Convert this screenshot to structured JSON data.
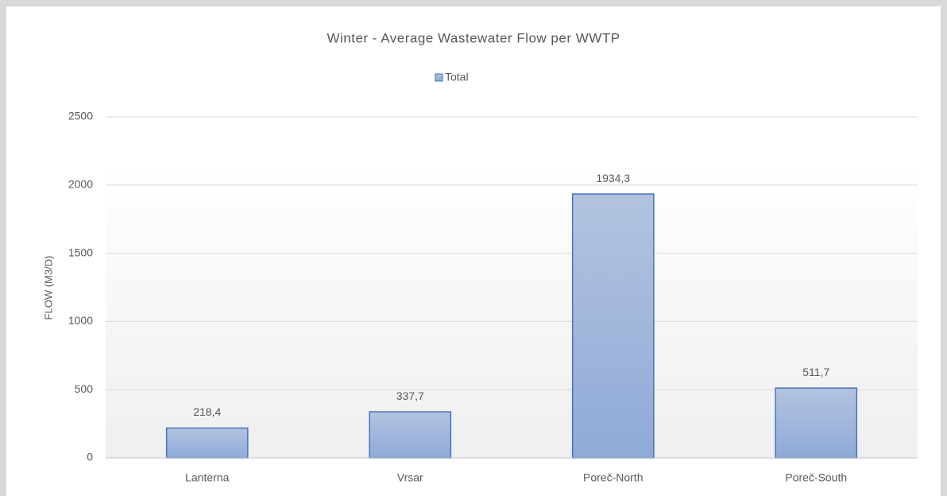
{
  "chart_data": {
    "type": "bar",
    "title": "Winter - Average Wastewater Flow per WWTP",
    "y_axis_label": "FLOW (M3/D)",
    "categories": [
      "Lanterna",
      "Vrsar",
      "Poreč-North",
      "Poreč-South"
    ],
    "series": [
      {
        "name": "Total",
        "color": "#4472c4",
        "values": [
          218.4,
          337.7,
          1934.3,
          511.7
        ],
        "value_labels": [
          "218,4",
          "337,7",
          "1934,3",
          "511,7"
        ]
      }
    ],
    "ylim": [
      0,
      2500
    ],
    "yticks": [
      0,
      500,
      1000,
      1500,
      2000,
      2500
    ],
    "grid": true,
    "legend": "top"
  }
}
